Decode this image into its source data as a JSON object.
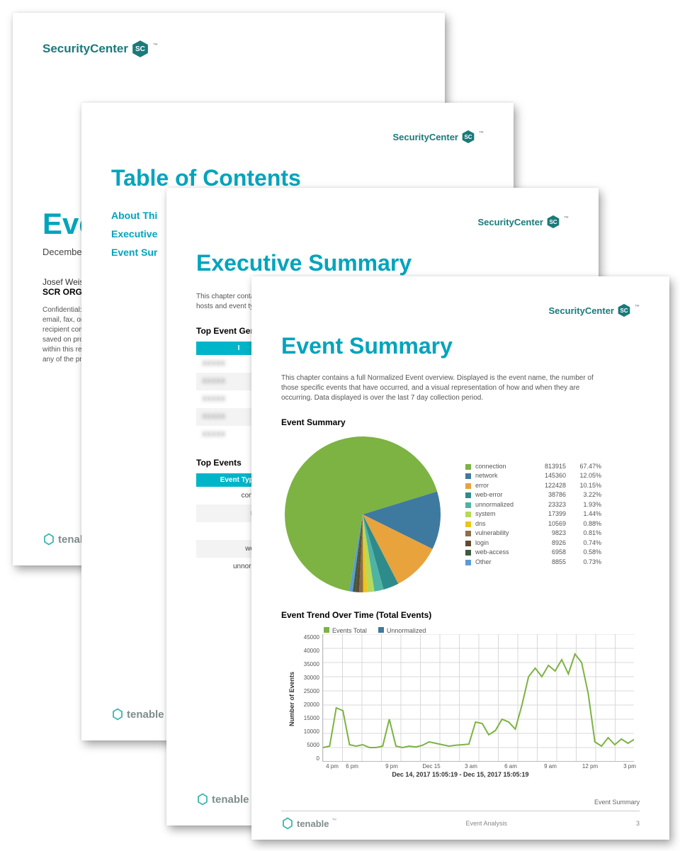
{
  "brand": {
    "name": "SecurityCenter",
    "badge": "SC"
  },
  "tenable": {
    "name": "tenable"
  },
  "page1": {
    "title_prefix": "Even",
    "date_prefix": "December",
    "author_prefix": "Josef Weis",
    "org_prefix": "SCR ORG",
    "confidential_lines": [
      "Confidential: The",
      "email, fax, or tra",
      "recipient compar",
      "saved on protecti",
      "within this report",
      "any of the previo"
    ]
  },
  "page2": {
    "title": "Table of Contents",
    "items": [
      "About Thi",
      "Executive",
      "Event Sur"
    ]
  },
  "page3": {
    "title": "Executive Summary",
    "intro_lines": [
      "This chapter conta",
      "hosts and event ty"
    ],
    "top_event_gen_label": "Top Event Gener",
    "top_event_gen_head": "I",
    "top_event_gen_rows": [
      "XXXXX",
      "XXXXX",
      "XXXXX",
      "XXXXX",
      "XXXXX"
    ],
    "top_events_label": "Top Events",
    "top_events_head": "Event Type",
    "top_events_rows": [
      "connection",
      "network",
      "error",
      "web-error",
      "unnormalized"
    ]
  },
  "page4": {
    "title": "Event Summary",
    "intro": "This chapter contains a full Normalized Event overview. Displayed is the event name, the number of those specific events that have occurred, and a visual representation of how and when they are occurring. Data displayed is over the last 7 day collection period.",
    "pie_section_label": "Event Summary",
    "pie": {
      "slices": [
        {
          "label": "connection",
          "count": 813915,
          "pct": 67.47,
          "color": "#7cb342"
        },
        {
          "label": "network",
          "count": 145360,
          "pct": 12.05,
          "color": "#3e79a0"
        },
        {
          "label": "error",
          "count": 122428,
          "pct": 10.15,
          "color": "#e8a33d"
        },
        {
          "label": "web-error",
          "count": 38786,
          "pct": 3.22,
          "color": "#2e8b8b"
        },
        {
          "label": "unnormalized",
          "count": 23323,
          "pct": 1.93,
          "color": "#4fb3a3"
        },
        {
          "label": "system",
          "count": 17399,
          "pct": 1.44,
          "color": "#b6d957"
        },
        {
          "label": "dns",
          "count": 10569,
          "pct": 0.88,
          "color": "#f0c419"
        },
        {
          "label": "vulnerability",
          "count": 9823,
          "pct": 0.81,
          "color": "#8b6f47"
        },
        {
          "label": "login",
          "count": 8926,
          "pct": 0.74,
          "color": "#5f4b32"
        },
        {
          "label": "web-access",
          "count": 6958,
          "pct": 0.58,
          "color": "#3d5a3d"
        },
        {
          "label": "Other",
          "count": 8855,
          "pct": 0.73,
          "color": "#5b9bd5"
        }
      ]
    },
    "trend": {
      "section_label": "Event Trend Over Time (Total Events)",
      "series": [
        {
          "label": "Events Total",
          "color": "#7cb342"
        },
        {
          "label": "Unnormalized",
          "color": "#3e79a0"
        }
      ],
      "y_label": "Number of Events",
      "y_max": 45000,
      "y_step": 5000,
      "y_ticks": [
        0,
        5000,
        10000,
        15000,
        20000,
        25000,
        30000,
        35000,
        40000,
        45000
      ],
      "x_ticks": [
        "4 pm",
        "6 pm",
        "",
        "9 pm",
        "",
        "Dec 15",
        "",
        "3 am",
        "",
        "6 am",
        "",
        "9 am",
        "",
        "12 pm",
        "",
        "3 pm"
      ],
      "x_label": "Dec 14, 2017 15:05:19 - Dec 15, 2017 15:05:19",
      "values": [
        5000,
        5500,
        19000,
        18000,
        6000,
        5500,
        6000,
        5000,
        5000,
        5500,
        15000,
        5500,
        5000,
        5500,
        5200,
        5800,
        7000,
        6500,
        6000,
        5500,
        5800,
        6000,
        6200,
        14000,
        13500,
        9500,
        11000,
        15000,
        14000,
        11500,
        20000,
        30000,
        33000,
        30000,
        34000,
        32000,
        36000,
        31000,
        38000,
        35000,
        24000,
        7000,
        5500,
        8500,
        6000,
        8000,
        6500,
        8000
      ]
    },
    "footer_center": "Event Analysis",
    "footer_right_label": "Event Summary",
    "page_number": "3"
  }
}
